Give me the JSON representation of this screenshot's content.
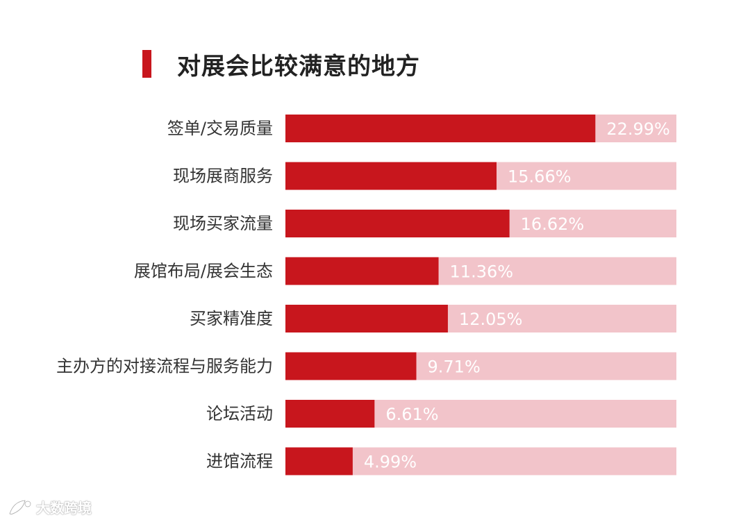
{
  "title": "对展会比较满意的地方",
  "watermark": {
    "text": "大数跨境",
    "logo_icon": "rocket-logo-icon"
  },
  "colors": {
    "accent": "#c8161d",
    "bar_background": "#f2c4ca",
    "value_text": "#ffffff",
    "category_text": "#333333"
  },
  "chart_data": {
    "type": "bar",
    "orientation": "horizontal",
    "title": "对展会比较满意的地方",
    "xlabel": "",
    "ylabel": "",
    "xlim": [
      0,
      29
    ],
    "grid": false,
    "legend": "none",
    "categories": [
      "签单/交易质量",
      "现场展商服务",
      "现场买家流量",
      "展馆布局/展会生态",
      "买家精准度",
      "主办方的对接流程与服务能力",
      "论坛活动",
      "进馆流程"
    ],
    "values": [
      22.99,
      15.66,
      16.62,
      11.36,
      12.05,
      9.71,
      6.61,
      4.99
    ],
    "value_labels": [
      "22.99%",
      "15.66%",
      "16.62%",
      "11.36%",
      "12.05%",
      "9.71%",
      "6.61%",
      "4.99%"
    ]
  }
}
